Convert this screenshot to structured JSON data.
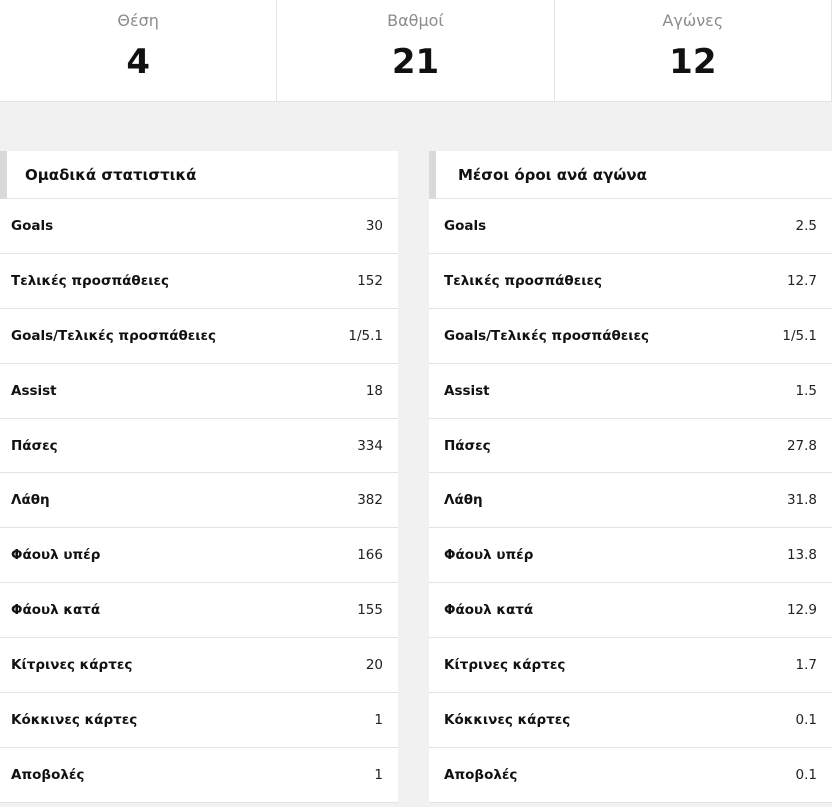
{
  "summary": [
    {
      "label": "Θέση",
      "value": "4"
    },
    {
      "label": "Βαθμοί",
      "value": "21"
    },
    {
      "label": "Αγώνες",
      "value": "12"
    }
  ],
  "team_stats": {
    "title": "Ομαδικά στατιστικά",
    "rows": [
      {
        "label": "Goals",
        "value": "30"
      },
      {
        "label": "Τελικές προσπάθειες",
        "value": "152"
      },
      {
        "label": "Goals/Τελικές προσπάθειες",
        "value": "1/5.1"
      },
      {
        "label": "Assist",
        "value": "18"
      },
      {
        "label": "Πάσες",
        "value": "334"
      },
      {
        "label": "Λάθη",
        "value": "382"
      },
      {
        "label": "Φάουλ υπέρ",
        "value": "166"
      },
      {
        "label": "Φάουλ κατά",
        "value": "155"
      },
      {
        "label": "Κίτρινες κάρτες",
        "value": "20"
      },
      {
        "label": "Κόκκινες κάρτες",
        "value": "1"
      },
      {
        "label": "Αποβολές",
        "value": "1"
      }
    ]
  },
  "averages": {
    "title": "Μέσοι όροι ανά αγώνα",
    "rows": [
      {
        "label": "Goals",
        "value": "2.5"
      },
      {
        "label": "Τελικές προσπάθειες",
        "value": "12.7"
      },
      {
        "label": "Goals/Τελικές προσπάθειες",
        "value": "1/5.1"
      },
      {
        "label": "Assist",
        "value": "1.5"
      },
      {
        "label": "Πάσες",
        "value": "27.8"
      },
      {
        "label": "Λάθη",
        "value": "31.8"
      },
      {
        "label": "Φάουλ υπέρ",
        "value": "13.8"
      },
      {
        "label": "Φάουλ κατά",
        "value": "12.9"
      },
      {
        "label": "Κίτρινες κάρτες",
        "value": "1.7"
      },
      {
        "label": "Κόκκινες κάρτες",
        "value": "0.1"
      },
      {
        "label": "Αποβολές",
        "value": "0.1"
      }
    ]
  }
}
